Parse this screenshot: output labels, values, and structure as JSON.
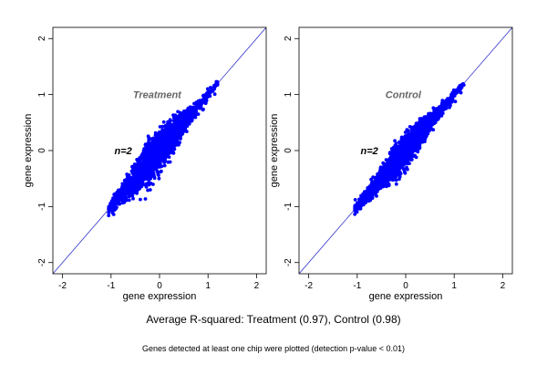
{
  "chart_data": [
    {
      "type": "scatter",
      "title": "Treatment",
      "annotation": "n=2",
      "xlabel": "gene expression",
      "ylabel": "gene expression",
      "xlim": [
        -2.2,
        2.2
      ],
      "ylim": [
        -2.2,
        2.2
      ],
      "xticks": [
        "-2",
        "-1",
        "0",
        "1",
        "2"
      ],
      "yticks": [
        "-2",
        "-1",
        "0",
        "1",
        "2"
      ],
      "reference_line": {
        "slope": 1,
        "intercept": 0,
        "color": "#3333cc"
      },
      "point_color": "#0000ff",
      "cloud": {
        "x_range": [
          -1.05,
          1.2
        ],
        "spread": 0.1,
        "r_squared": 0.97
      },
      "grid": false,
      "legend": "none"
    },
    {
      "type": "scatter",
      "title": "Control",
      "annotation": "n=2",
      "xlabel": "gene expression",
      "ylabel": "gene expression",
      "xlim": [
        -2.2,
        2.2
      ],
      "ylim": [
        -2.2,
        2.2
      ],
      "xticks": [
        "-2",
        "-1",
        "0",
        "1",
        "2"
      ],
      "yticks": [
        "-2",
        "-1",
        "0",
        "1",
        "2"
      ],
      "reference_line": {
        "slope": 1,
        "intercept": 0,
        "color": "#3333cc"
      },
      "point_color": "#0000ff",
      "cloud": {
        "x_range": [
          -1.05,
          1.2
        ],
        "spread": 0.08,
        "r_squared": 0.98
      },
      "grid": false,
      "legend": "none"
    }
  ],
  "caption": "Average R-squared: Treatment (0.97), Control (0.98)",
  "footnote": "Genes detected at least one chip were plotted (detection p-value < 0.01)"
}
